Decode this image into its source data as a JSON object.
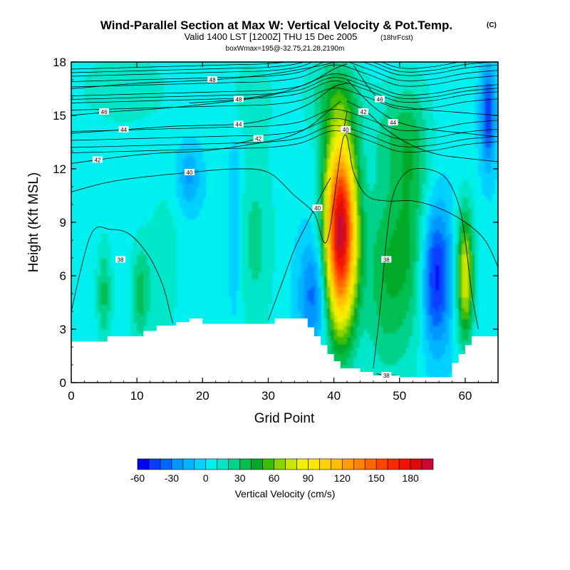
{
  "chart_data": {
    "type": "heatmap",
    "title": "Wind-Parallel Section at Max W: Vertical Velocity & Pot.Temp.",
    "title_mark": "(C)",
    "subtitle": "Valid 1400 LST [1200Z] THU 15 Dec 2005",
    "subtitle_note": "(18hrFcst)",
    "subtitle2": "boxWmax=195@-32.75,21.28,2190m",
    "xlabel": "Grid Point",
    "ylabel": "Height (Kft MSL)",
    "xlim": [
      0,
      65
    ],
    "ylim": [
      0,
      18
    ],
    "xticks": [
      0,
      10,
      20,
      30,
      40,
      50,
      60
    ],
    "yticks": [
      0,
      3,
      6,
      9,
      12,
      15,
      18
    ],
    "colorbar": {
      "label": "Vertical Velocity (cm/s)",
      "ticks": [
        "-60",
        "-30",
        "0",
        "30",
        "60",
        "90",
        "120",
        "150",
        "180"
      ],
      "tick_values": [
        -60,
        -30,
        0,
        30,
        60,
        90,
        120,
        150,
        180
      ],
      "levels": [
        -60,
        -50,
        -40,
        -30,
        -20,
        -10,
        0,
        10,
        20,
        30,
        40,
        50,
        60,
        70,
        80,
        90,
        100,
        110,
        120,
        130,
        140,
        150,
        160,
        170,
        180,
        190,
        200
      ],
      "colors": [
        "#0000ff",
        "#0a3cff",
        "#0064ff",
        "#0096ff",
        "#00b4ff",
        "#00d2ff",
        "#00f0f0",
        "#00e6c8",
        "#00d28c",
        "#00be50",
        "#00aa28",
        "#3cbe00",
        "#8cd200",
        "#c8e600",
        "#f0f000",
        "#ffe600",
        "#ffd200",
        "#ffbe00",
        "#ffa000",
        "#ff8200",
        "#ff6400",
        "#ff4600",
        "#ff2800",
        "#f01400",
        "#dc0a0a",
        "#c80a32"
      ]
    },
    "terrain_kft": [
      [
        0,
        2.3
      ],
      [
        5.5,
        2.3
      ],
      [
        5.5,
        2.6
      ],
      [
        10,
        2.6
      ],
      [
        10,
        2.6
      ],
      [
        11,
        2.6
      ],
      [
        11,
        2.9
      ],
      [
        13,
        2.9
      ],
      [
        13,
        3.2
      ],
      [
        16,
        3.2
      ],
      [
        16,
        3.4
      ],
      [
        18,
        3.4
      ],
      [
        18,
        3.6
      ],
      [
        20,
        3.6
      ],
      [
        20,
        3.3
      ],
      [
        31,
        3.3
      ],
      [
        31,
        3.6
      ],
      [
        36,
        3.6
      ],
      [
        36,
        3.1
      ],
      [
        37,
        3.1
      ],
      [
        37,
        2.6
      ],
      [
        38,
        2.6
      ],
      [
        38,
        2.1
      ],
      [
        39,
        2.1
      ],
      [
        39,
        1.6
      ],
      [
        40,
        1.6
      ],
      [
        40,
        1.2
      ],
      [
        41,
        1.2
      ],
      [
        41,
        0.8
      ],
      [
        44,
        0.8
      ],
      [
        44,
        0.6
      ],
      [
        46,
        0.6
      ],
      [
        46,
        0.4
      ],
      [
        50,
        0.4
      ],
      [
        50,
        0.3
      ],
      [
        55,
        0.3
      ],
      [
        55,
        0.3
      ],
      [
        58,
        0.3
      ],
      [
        58,
        1.1
      ],
      [
        59,
        1.1
      ],
      [
        59,
        1.6
      ],
      [
        60,
        1.6
      ],
      [
        60,
        2.1
      ],
      [
        61,
        2.1
      ],
      [
        61,
        2.6
      ],
      [
        65,
        2.6
      ]
    ],
    "w_features_cm_s": [
      {
        "x": 41,
        "y": 8.5,
        "peak": 195,
        "sx": 1.7,
        "sy": 3.8
      },
      {
        "x": 55.5,
        "y": 6.0,
        "peak": -60,
        "sx": 1.6,
        "sy": 2.8
      },
      {
        "x": 60,
        "y": 6.0,
        "peak": 80,
        "sx": 0.9,
        "sy": 2.5
      },
      {
        "x": 37,
        "y": 5.0,
        "peak": -40,
        "sx": 1.6,
        "sy": 2.2
      },
      {
        "x": 48,
        "y": 6.0,
        "peak": 35,
        "sx": 2.5,
        "sy": 4.0
      },
      {
        "x": 52,
        "y": 9.0,
        "peak": 30,
        "sx": 2.0,
        "sy": 4.5
      },
      {
        "x": 5,
        "y": 5.0,
        "peak": 30,
        "sx": 0.8,
        "sy": 2.0
      },
      {
        "x": 10.5,
        "y": 5.0,
        "peak": 30,
        "sx": 1.0,
        "sy": 2.0
      },
      {
        "x": 14,
        "y": 6.5,
        "peak": 15,
        "sx": 1.8,
        "sy": 3.0
      },
      {
        "x": 28,
        "y": 8.0,
        "peak": 20,
        "sx": 2.0,
        "sy": 4.0
      },
      {
        "x": 18,
        "y": 11.5,
        "peak": -25,
        "sx": 1.2,
        "sy": 1.2
      },
      {
        "x": 25,
        "y": 9.0,
        "peak": -15,
        "sx": 0.8,
        "sy": 4.0
      },
      {
        "x": 63.5,
        "y": 15.0,
        "peak": -50,
        "sx": 0.8,
        "sy": 2.0
      },
      {
        "x": 40,
        "y": 16.0,
        "peak": 25,
        "sx": 3.0,
        "sy": 1.6
      },
      {
        "x": 50,
        "y": 14.0,
        "peak": 20,
        "sx": 3.0,
        "sy": 2.0
      },
      {
        "x": 8,
        "y": 16.5,
        "peak": 15,
        "sx": 5.0,
        "sy": 1.5
      },
      {
        "x": 27,
        "y": 16.0,
        "peak": 12,
        "sx": 3.0,
        "sy": 1.5
      }
    ],
    "theta_contours": [
      {
        "label": "38",
        "label_at": [
          7.5,
          6.9
        ],
        "points": [
          [
            0,
            4.0
          ],
          [
            3,
            8.3
          ],
          [
            6,
            8.6
          ],
          [
            9,
            8.3
          ],
          [
            12,
            7.0
          ],
          [
            14,
            5.4
          ],
          [
            15,
            4.0
          ],
          [
            15.5,
            3.3
          ]
        ]
      },
      {
        "label": "38",
        "label_at": [
          48,
          6.9
        ],
        "points": [
          [
            46,
            0.8
          ],
          [
            47,
            4.0
          ],
          [
            48,
            8.0
          ],
          [
            49,
            10.5
          ],
          [
            51,
            11.8
          ],
          [
            54,
            12.0
          ],
          [
            57,
            11.5
          ],
          [
            59,
            10.0
          ],
          [
            60,
            8.0
          ],
          [
            61,
            5.0
          ],
          [
            62,
            3.0
          ]
        ]
      },
      {
        "label": "38",
        "label_at": [
          48,
          0.4
        ],
        "points": [
          [
            46.5,
            0.5
          ],
          [
            48,
            0.4
          ],
          [
            49.5,
            0.4
          ]
        ]
      },
      {
        "label": "40",
        "label_at": [
          18,
          11.8
        ],
        "points": [
          [
            0,
            10.7
          ],
          [
            5,
            11.2
          ],
          [
            10,
            11.5
          ],
          [
            18,
            11.8
          ],
          [
            25,
            12.0
          ],
          [
            30,
            11.8
          ],
          [
            34,
            10.5
          ],
          [
            37,
            9.5
          ],
          [
            39,
            8.0
          ],
          [
            41.5,
            13.8
          ],
          [
            43,
            11.8
          ],
          [
            45,
            10.5
          ],
          [
            48,
            10.2
          ],
          [
            52,
            10.2
          ],
          [
            56,
            9.8
          ],
          [
            60,
            9.0
          ],
          [
            63,
            8.0
          ],
          [
            65,
            6.5
          ]
        ]
      },
      {
        "label": "40",
        "label_at": [
          37.5,
          9.8
        ],
        "points": [
          [
            30,
            3.5
          ],
          [
            32,
            5.5
          ],
          [
            34,
            7.5
          ],
          [
            36,
            9.0
          ],
          [
            38,
            10.5
          ],
          [
            39.5,
            11.5
          ]
        ]
      },
      {
        "label": "40",
        "label_at": [
          41.8,
          14.2
        ],
        "points": [
          [
            41.5,
            14.2
          ],
          [
            42,
            15.2
          ]
        ]
      },
      {
        "label": "42",
        "label_at": [
          4,
          12.5
        ],
        "points": [
          [
            0,
            12.3
          ],
          [
            8,
            12.7
          ],
          [
            14,
            12.9
          ],
          [
            20,
            13.0
          ],
          [
            26,
            13.3
          ],
          [
            32,
            13.7
          ],
          [
            36,
            14.3
          ],
          [
            39,
            15.2
          ],
          [
            41,
            15.8
          ]
        ]
      },
      {
        "label": "42",
        "label_at": [
          28.5,
          13.7
        ],
        "points": [
          [
            25,
            13.4
          ],
          [
            28.5,
            13.7
          ]
        ]
      },
      {
        "label": "42",
        "label_at": [
          44.5,
          15.2
        ],
        "points": [
          [
            42,
            15.8
          ],
          [
            45,
            15.2
          ],
          [
            48,
            14.2
          ],
          [
            52,
            13.3
          ],
          [
            56,
            12.8
          ],
          [
            60,
            12.6
          ],
          [
            65,
            12.4
          ]
        ]
      },
      {
        "label": "44",
        "label_at": [
          8,
          14.2
        ],
        "points": [
          [
            0,
            14.0
          ],
          [
            8,
            14.2
          ],
          [
            16,
            14.4
          ],
          [
            25,
            14.5
          ],
          [
            30,
            14.8
          ],
          [
            36,
            15.6
          ],
          [
            40,
            16.6
          ],
          [
            42,
            16.8
          ]
        ]
      },
      {
        "label": "44",
        "label_at": [
          25.5,
          14.5
        ],
        "points": [
          [
            25,
            14.5
          ],
          [
            26,
            14.6
          ]
        ]
      },
      {
        "label": "44",
        "label_at": [
          49,
          14.6
        ],
        "points": [
          [
            42,
            17.0
          ],
          [
            46,
            15.5
          ],
          [
            50,
            14.6
          ],
          [
            55,
            14.2
          ],
          [
            60,
            14.0
          ],
          [
            65,
            13.8
          ]
        ]
      },
      {
        "label": "46",
        "label_at": [
          5,
          15.2
        ],
        "points": [
          [
            0,
            15.0
          ],
          [
            6,
            15.2
          ],
          [
            14,
            15.4
          ],
          [
            22,
            15.7
          ],
          [
            30,
            16.1
          ],
          [
            36,
            16.8
          ],
          [
            40,
            17.6
          ],
          [
            42,
            17.9
          ]
        ]
      },
      {
        "label": "46",
        "label_at": [
          47,
          15.9
        ],
        "points": [
          [
            43,
            17.8
          ],
          [
            47,
            15.9
          ],
          [
            52,
            15.4
          ],
          [
            58,
            15.2
          ],
          [
            65,
            15.0
          ]
        ]
      },
      {
        "label": "48",
        "label_at": [
          21.5,
          17.0
        ],
        "points": [
          [
            0,
            16.5
          ],
          [
            10,
            16.8
          ],
          [
            21.5,
            17.0
          ],
          [
            30,
            17.3
          ],
          [
            38,
            17.8
          ],
          [
            40,
            18.0
          ]
        ]
      },
      {
        "label": "48",
        "label_at": [
          25.5,
          15.9
        ],
        "points": [
          [
            18,
            15.7
          ],
          [
            25.5,
            15.9
          ],
          [
            32,
            16.3
          ]
        ]
      }
    ],
    "theta_background_levels_kft": [
      15.6,
      16.0,
      16.2,
      16.4,
      16.9,
      17.2,
      17.5,
      17.7,
      17.9,
      13.2,
      13.5,
      13.9,
      14.4
    ]
  }
}
